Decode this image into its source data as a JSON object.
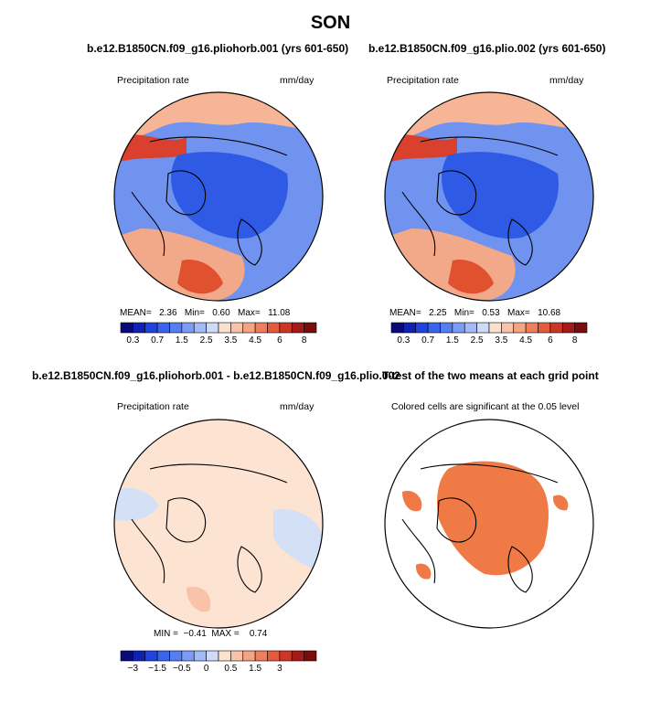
{
  "page": {
    "title": "SON"
  },
  "panels": [
    {
      "id": "p1",
      "title": "b.e12.B1850CN.f09_g16.pliohorb.001 (yrs 601-650)",
      "left_label": "Precipitation rate",
      "right_label": "mm/day",
      "stats": {
        "mean_label": "MEAN=",
        "mean": "2.36",
        "min_label": "Min=",
        "min": "0.60",
        "max_label": "Max=",
        "max": "11.08"
      },
      "colorbar": {
        "ticks": [
          "0.3",
          "0.7",
          "1.5",
          "2.5",
          "3.5",
          "4.5",
          "6",
          "8"
        ]
      }
    },
    {
      "id": "p2",
      "title": "b.e12.B1850CN.f09_g16.plio.002 (yrs 601-650)",
      "left_label": "Precipitation rate",
      "right_label": "mm/day",
      "stats": {
        "mean_label": "MEAN=",
        "mean": "2.25",
        "min_label": "Min=",
        "min": "0.53",
        "max_label": "Max=",
        "max": "10.68"
      },
      "colorbar": {
        "ticks": [
          "0.3",
          "0.7",
          "1.5",
          "2.5",
          "3.5",
          "4.5",
          "6",
          "8"
        ]
      }
    },
    {
      "id": "p3",
      "title": "b.e12.B1850CN.f09_g16.pliohorb.001 - b.e12.B1850CN.f09_g16.plio.002",
      "left_label": "Precipitation rate",
      "right_label": "mm/day",
      "stats": {
        "min_label": "MIN =",
        "min": "−0.41",
        "max_label": "MAX =",
        "max": "0.74"
      },
      "colorbar": {
        "ticks": [
          "−3",
          "−1.5",
          "−0.5",
          "0",
          "0.5",
          "1.5",
          "3"
        ]
      }
    },
    {
      "id": "p4",
      "title": "T-test of the two means at each grid point",
      "subtitle": "Colored cells are significant at the 0.05 level"
    }
  ],
  "chart_data": [
    {
      "type": "heatmap",
      "projection": "north-polar-stereographic",
      "title": "b.e12.B1850CN.f09_g16.pliohorb.001 (yrs 601-650)",
      "variable": "Precipitation rate",
      "units": "mm/day",
      "mean": 2.36,
      "min": 0.6,
      "max": 11.08,
      "levels": [
        0.3,
        0.5,
        0.7,
        1,
        1.5,
        2,
        2.5,
        3,
        3.5,
        4,
        4.5,
        5,
        6,
        7,
        8
      ],
      "colors": [
        "#0a0a7a",
        "#0f22b4",
        "#1f45de",
        "#3a64ec",
        "#557ef2",
        "#7a9cf6",
        "#a2baf8",
        "#cfdaf7",
        "#fbe2cf",
        "#f8c3a8",
        "#f4a383",
        "#ee7f5d",
        "#e35b3c",
        "#cc3626",
        "#a41a16",
        "#7a0c0c"
      ]
    },
    {
      "type": "heatmap",
      "projection": "north-polar-stereographic",
      "title": "b.e12.B1850CN.f09_g16.plio.002 (yrs 601-650)",
      "variable": "Precipitation rate",
      "units": "mm/day",
      "mean": 2.25,
      "min": 0.53,
      "max": 10.68,
      "levels": [
        0.3,
        0.5,
        0.7,
        1,
        1.5,
        2,
        2.5,
        3,
        3.5,
        4,
        4.5,
        5,
        6,
        7,
        8
      ],
      "colors": [
        "#0a0a7a",
        "#0f22b4",
        "#1f45de",
        "#3a64ec",
        "#557ef2",
        "#7a9cf6",
        "#a2baf8",
        "#cfdaf7",
        "#fbe2cf",
        "#f8c3a8",
        "#f4a383",
        "#ee7f5d",
        "#e35b3c",
        "#cc3626",
        "#a41a16",
        "#7a0c0c"
      ]
    },
    {
      "type": "heatmap",
      "projection": "north-polar-stereographic",
      "title": "b.e12.B1850CN.f09_g16.pliohorb.001 - b.e12.B1850CN.f09_g16.plio.002",
      "variable": "Precipitation rate",
      "units": "mm/day",
      "min": -0.41,
      "max": 0.74,
      "levels": [
        -3,
        -2.5,
        -2,
        -1.5,
        -1,
        -0.5,
        -0.25,
        0,
        0.25,
        0.5,
        1,
        1.5,
        2,
        2.5,
        3
      ],
      "colors": [
        "#0a0a7a",
        "#0f22b4",
        "#1f45de",
        "#3a64ec",
        "#557ef2",
        "#7a9cf6",
        "#a2baf8",
        "#cfdaf7",
        "#fbe2cf",
        "#f8c3a8",
        "#f4a383",
        "#ee7f5d",
        "#e35b3c",
        "#cc3626",
        "#a41a16",
        "#7a0c0c"
      ]
    },
    {
      "type": "heatmap",
      "projection": "north-polar-stereographic",
      "title": "T-test of the two means at each grid point",
      "subtitle": "Colored cells are significant at the 0.05 level",
      "significance_level": 0.05,
      "significant_color": "#f07a45"
    }
  ]
}
